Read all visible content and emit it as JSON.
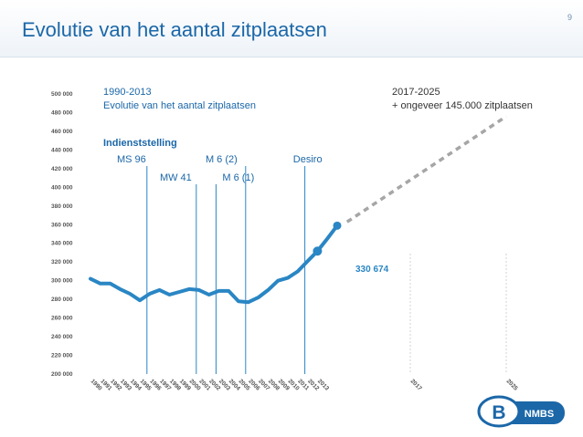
{
  "slide": {
    "title": "Evolutie van het aantal zitplaatsen",
    "page_number": "9"
  },
  "annotations": {
    "period_left_line1": "1990-2013",
    "period_left_line2": "Evolutie van het aantal zitplaatsen",
    "period_right_line1": "2017-2025",
    "period_right_line2": "+ ongeveer 145.000 zitplaatsen",
    "indienststelling_label": "Indienststelling",
    "milestones": [
      {
        "label": "MS 96",
        "year": 1996
      },
      {
        "label": "MW 41",
        "year": 2001
      },
      {
        "label": "M 6 (1)",
        "year": 2003
      },
      {
        "label": "M 6 (2)",
        "year": 2006
      },
      {
        "label": "Desiro",
        "year": 2012
      }
    ],
    "highlight_value_label": "330 674"
  },
  "logo": {
    "text": "NMBS",
    "letter": "B"
  },
  "colors": {
    "series": "#2a86c4",
    "title": "#1b67a8",
    "projection": "#a6a6a6",
    "ticks": "#555555"
  },
  "chart_data": {
    "type": "line",
    "title": "",
    "xlabel": "",
    "ylabel": "",
    "ylim": [
      200000,
      500000
    ],
    "yticks": [
      "200 000",
      "220 000",
      "240 000",
      "260 000",
      "280 000",
      "300 000",
      "320 000",
      "340 000",
      "360 000",
      "380 000",
      "400 000",
      "420 000",
      "440 000",
      "460 000",
      "480 000",
      "500 000"
    ],
    "xticks": [
      "1990",
      "1991",
      "1992",
      "1993",
      "1994",
      "1995",
      "1996",
      "1997",
      "1998",
      "1999",
      "2000",
      "2001",
      "2002",
      "2003",
      "2004",
      "2005",
      "2006",
      "2007",
      "2008",
      "2009",
      "2010",
      "2011",
      "2012",
      "2013",
      "2017",
      "2025"
    ],
    "series": [
      {
        "values_x": [
          1990,
          1991,
          1992,
          1993,
          1994,
          1995,
          1996,
          1997,
          1998,
          1999,
          2000,
          2001,
          2002,
          2003,
          2004,
          2005,
          2006,
          2007,
          2008,
          2009,
          2010,
          2011,
          2012,
          2013,
          2014,
          2015
        ],
        "values_y": [
          301000,
          296000,
          296000,
          290000,
          285000,
          278000,
          285000,
          289000,
          284000,
          287000,
          290000,
          289000,
          284000,
          288000,
          288000,
          277000,
          276000,
          281000,
          289000,
          299000,
          302000,
          309000,
          320000,
          330674,
          344000,
          358000
        ]
      },
      {
        "style": "dashed",
        "values_x": [
          2016,
          2025
        ],
        "values_y": [
          362000,
          475000
        ]
      }
    ],
    "highlight_point": {
      "x": 2013,
      "y": 330674
    },
    "grid": false
  }
}
